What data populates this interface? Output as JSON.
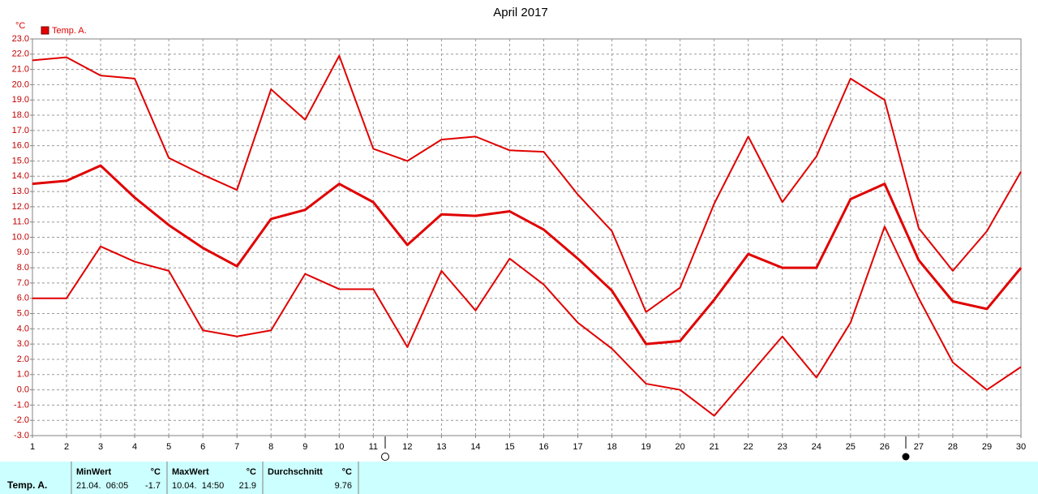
{
  "chart_data": {
    "type": "line",
    "title": "April 2017",
    "y_label": "°C",
    "legend": "top-left",
    "grid": true,
    "x": [
      1,
      2,
      3,
      4,
      5,
      6,
      7,
      8,
      9,
      10,
      11,
      12,
      13,
      14,
      15,
      16,
      17,
      18,
      19,
      20,
      21,
      22,
      23,
      24,
      25,
      26,
      27,
      28,
      29,
      30
    ],
    "series": [
      {
        "name": "Temp. A.",
        "color": "#e00000",
        "values": [
          21.6,
          21.8,
          20.6,
          20.4,
          15.2,
          14.1,
          13.1,
          19.7,
          17.7,
          21.9,
          15.8,
          15.0,
          16.4,
          16.6,
          15.7,
          15.6,
          12.8,
          10.4,
          5.1,
          6.7,
          12.2,
          16.6,
          12.3,
          15.3,
          20.4,
          19.0,
          10.6,
          7.8,
          10.4,
          14.3
        ]
      },
      {
        "color": "#e00000",
        "values": [
          13.5,
          13.7,
          14.7,
          12.6,
          10.8,
          9.3,
          8.1,
          11.2,
          11.8,
          13.5,
          12.3,
          9.5,
          11.5,
          11.4,
          11.7,
          10.5,
          8.6,
          6.5,
          3.0,
          3.2,
          5.9,
          8.9,
          8.0,
          8.0,
          12.5,
          13.5,
          8.5,
          5.8,
          5.3,
          8.0
        ]
      },
      {
        "color": "#e00000",
        "values": [
          6.0,
          6.0,
          9.4,
          8.4,
          7.8,
          3.9,
          3.5,
          3.9,
          7.6,
          6.6,
          6.6,
          2.8,
          7.8,
          5.2,
          8.6,
          6.9,
          4.4,
          2.7,
          0.4,
          0.0,
          -1.7,
          0.9,
          3.5,
          0.8,
          4.4,
          10.7,
          6.0,
          1.8,
          0.0,
          1.5
        ]
      }
    ],
    "xlim": [
      1,
      30
    ],
    "xticks": [
      1,
      2,
      3,
      4,
      5,
      6,
      7,
      8,
      9,
      10,
      11,
      12,
      13,
      14,
      15,
      16,
      17,
      18,
      19,
      20,
      21,
      22,
      23,
      24,
      25,
      26,
      27,
      28,
      29,
      30
    ],
    "ylim": [
      -3,
      23
    ],
    "yticks": [
      {
        "value": 23,
        "label": "23.0"
      },
      {
        "value": 22,
        "label": "22.0"
      },
      {
        "value": 21,
        "label": "21.0"
      },
      {
        "value": 20,
        "label": "20.0"
      },
      {
        "value": 19,
        "label": "19.0"
      },
      {
        "value": 18,
        "label": "18.0"
      },
      {
        "value": 17,
        "label": "17.0"
      },
      {
        "value": 16,
        "label": "16.0"
      },
      {
        "value": 15,
        "label": "15.0"
      },
      {
        "value": 14,
        "label": "14.0"
      },
      {
        "value": 13,
        "label": "13.0"
      },
      {
        "value": 12,
        "label": "12.0"
      },
      {
        "value": 11,
        "label": "11.0"
      },
      {
        "value": 10,
        "label": "10.0"
      },
      {
        "value": 9,
        "label": "9.0"
      },
      {
        "value": 8,
        "label": "8.0"
      },
      {
        "value": 7,
        "label": "7.0"
      },
      {
        "value": 6,
        "label": "6.0"
      },
      {
        "value": 5,
        "label": "5.0"
      },
      {
        "value": 4,
        "label": "4.0"
      },
      {
        "value": 3,
        "label": "3.0"
      },
      {
        "value": 2,
        "label": "2.0"
      },
      {
        "value": 1,
        "label": "1.0"
      },
      {
        "value": 0,
        "label": "0.0"
      },
      {
        "value": -1,
        "label": "-1.0"
      },
      {
        "value": -2,
        "label": "-2.0"
      },
      {
        "value": -3,
        "label": "-3.0"
      }
    ]
  },
  "summary": {
    "series_label": "Temp. A.",
    "columns": [
      {
        "title": "MinWert",
        "unit": "°C",
        "time": "21.04.  06:05",
        "value": -1.7
      },
      {
        "title": "MaxWert",
        "unit": "°C",
        "time": "10.04.  14:50",
        "value": 21.9
      },
      {
        "title": "Durchschnitt",
        "unit": "°C",
        "value": 9.76
      }
    ]
  }
}
